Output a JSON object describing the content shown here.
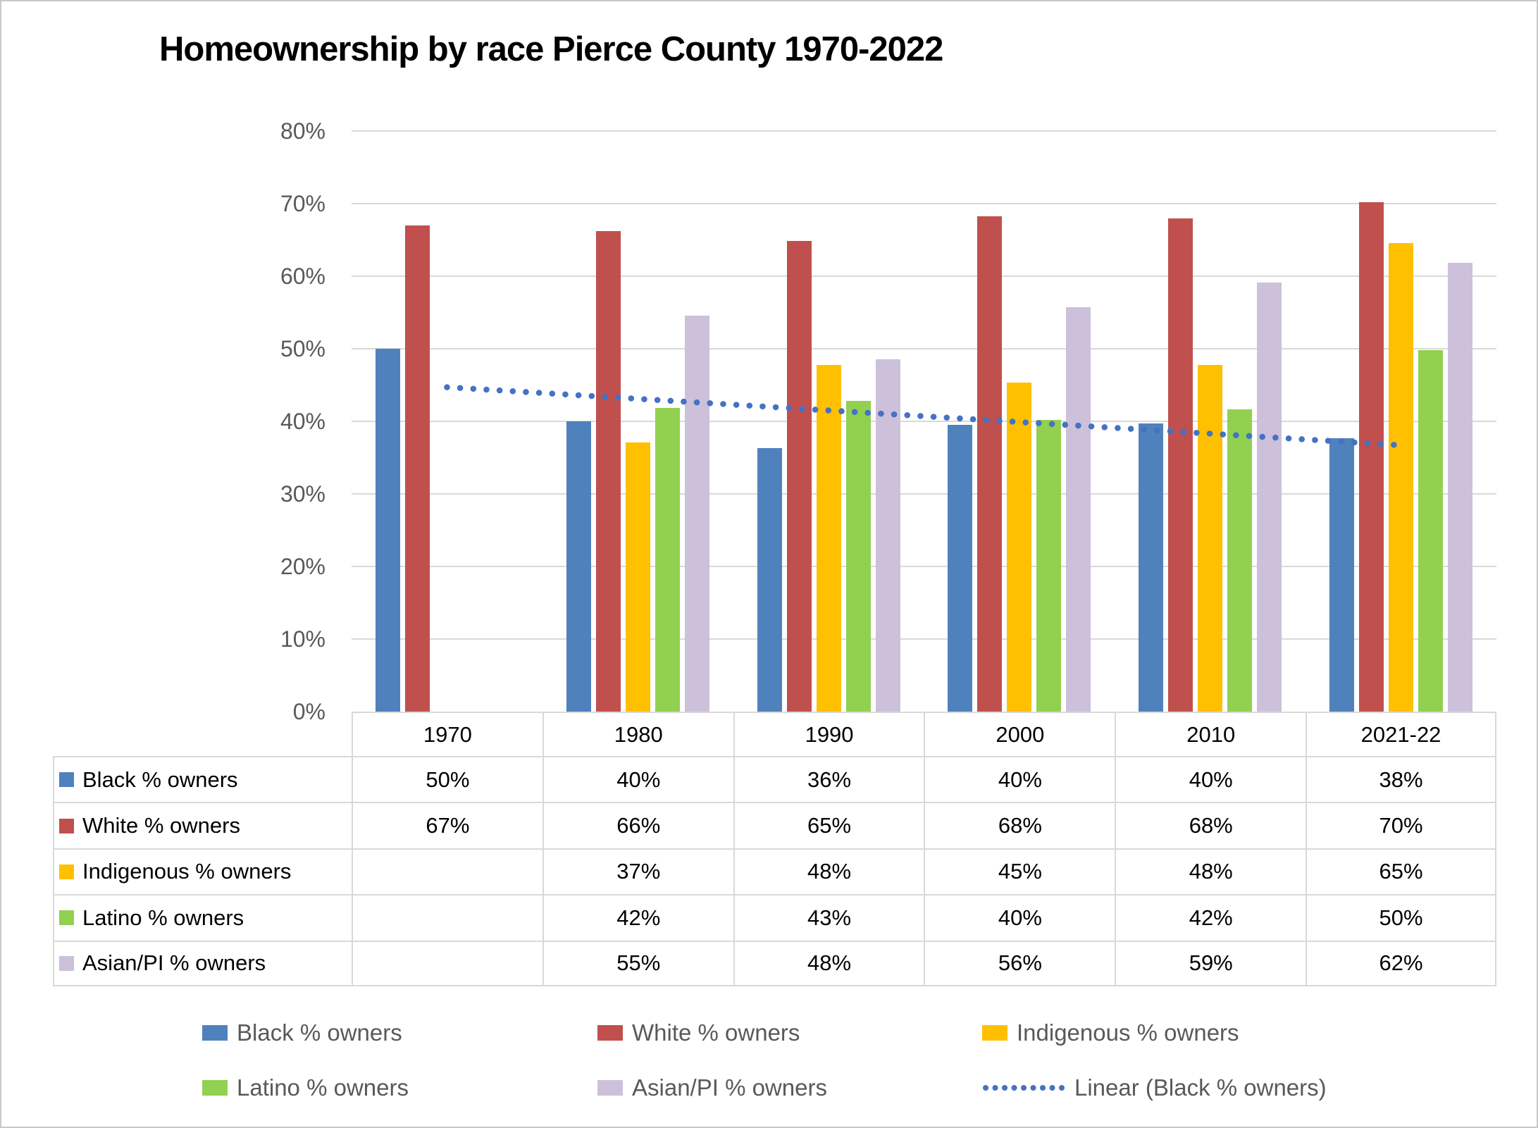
{
  "title": "Homeownership by race Pierce County 1970-2022",
  "y_axis": {
    "labels": [
      "0%",
      "10%",
      "20%",
      "30%",
      "40%",
      "50%",
      "60%",
      "70%",
      "80%"
    ]
  },
  "chart_data": {
    "type": "bar",
    "title": "Homeownership by race Pierce County 1970-2022",
    "categories": [
      "1970",
      "1980",
      "1990",
      "2000",
      "2010",
      "2021-22"
    ],
    "ylim": [
      0,
      80
    ],
    "y_tick_step": 10,
    "grid": true,
    "legend_position": "bottom",
    "series": [
      {
        "name": "Black % owners",
        "color": "#4F81BD",
        "values": [
          50,
          40,
          36.3,
          39.5,
          39.7,
          37.7
        ]
      },
      {
        "name": "White % owners",
        "color": "#C0504D",
        "values": [
          67,
          66.2,
          64.9,
          68.3,
          68,
          70.2
        ]
      },
      {
        "name": "Indigenous % owners",
        "color": "#FFC000",
        "values": [
          null,
          37.1,
          47.8,
          45.3,
          47.8,
          64.6
        ]
      },
      {
        "name": "Latino % owners",
        "color": "#92D050",
        "values": [
          null,
          41.8,
          42.8,
          40.2,
          41.7,
          49.8
        ]
      },
      {
        "name": "Asian/PI % owners",
        "color": "#CCC0DA",
        "values": [
          null,
          54.6,
          48.5,
          55.7,
          59.1,
          61.8
        ]
      }
    ],
    "trendline": {
      "name": "Linear (Black % owners)",
      "color": "#4472C4",
      "style": "dotted",
      "start_value": 44.7,
      "end_value": 36.7
    },
    "data_table": {
      "rows": [
        {
          "label": "Black % owners",
          "values": [
            "50%",
            "40%",
            "36%",
            "40%",
            "40%",
            "38%"
          ]
        },
        {
          "label": "White % owners",
          "values": [
            "67%",
            "66%",
            "65%",
            "68%",
            "68%",
            "70%"
          ]
        },
        {
          "label": "Indigenous % owners",
          "values": [
            "",
            "37%",
            "48%",
            "45%",
            "48%",
            "65%"
          ]
        },
        {
          "label": "Latino % owners",
          "values": [
            "",
            "42%",
            "43%",
            "40%",
            "42%",
            "50%"
          ]
        },
        {
          "label": "Asian/PI % owners",
          "values": [
            "",
            "55%",
            "48%",
            "56%",
            "59%",
            "62%"
          ]
        }
      ]
    }
  },
  "colors": {
    "gridline": "#D9D9D9",
    "table_border": "#D9D9D9",
    "axis_text": "#595959",
    "legend_text": "#595959",
    "frame": "#C9C9C9",
    "background": "#FFFFFF"
  }
}
